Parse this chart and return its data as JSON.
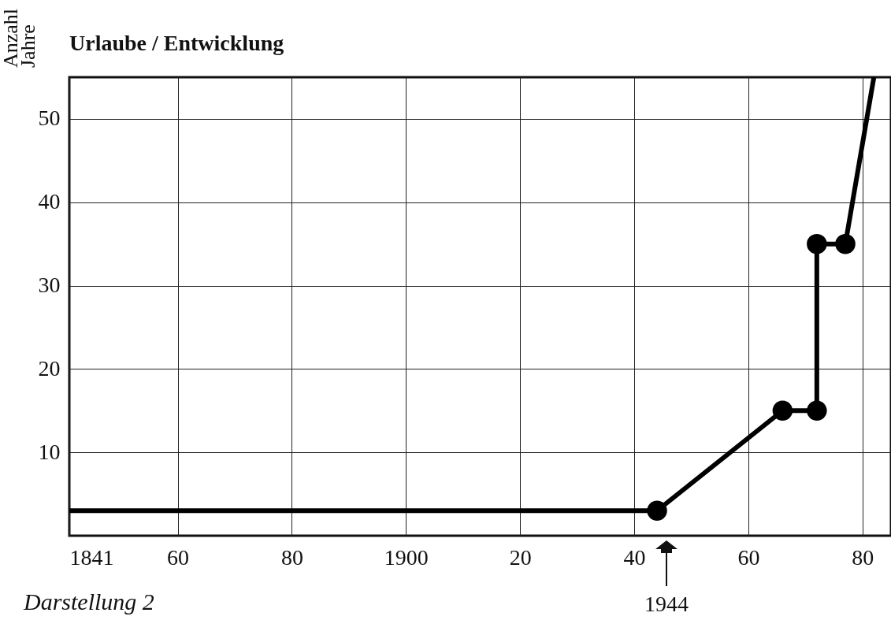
{
  "chart_data": {
    "type": "line",
    "title": "Urlaube / Entwicklung",
    "ylabel": "Anzahl Jahre",
    "xlim": [
      1841,
      1985
    ],
    "ylim": [
      0,
      55
    ],
    "xticks": [
      1841,
      {
        "value": 1860,
        "label": "60"
      },
      {
        "value": 1880,
        "label": "80"
      },
      1900,
      {
        "value": 1920,
        "label": "20"
      },
      {
        "value": 1940,
        "label": "40"
      },
      {
        "value": 1960,
        "label": "60"
      },
      {
        "value": 1980,
        "label": "80"
      }
    ],
    "yticks": [
      10,
      20,
      30,
      40,
      50
    ],
    "grid": true,
    "line_style": "solid",
    "series": [
      {
        "marker": "none",
        "color": "#000000",
        "x": [
          1841,
          1944,
          1966,
          1972,
          1972,
          1977,
          1982
        ],
        "values": [
          3,
          3,
          15,
          15,
          35,
          35,
          55
        ]
      },
      {
        "type": "scatter",
        "marker": "circle",
        "color": "#000000",
        "x": [
          1944,
          1966,
          1972,
          1972,
          1977
        ],
        "values": [
          3,
          15,
          15,
          35,
          35
        ]
      }
    ],
    "annotations": [
      "1944",
      "Darstellung 2"
    ]
  }
}
